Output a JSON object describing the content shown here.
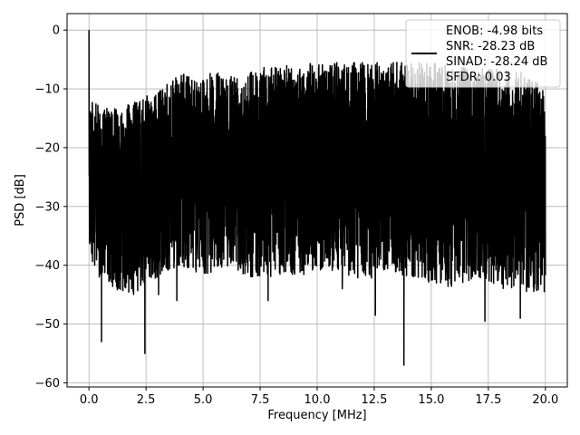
{
  "chart_data": {
    "type": "line",
    "title": "",
    "xlabel": "Frequency [MHz]",
    "ylabel": "PSD [dB]",
    "xlim": [
      -0.96,
      20.96
    ],
    "ylim": [
      -60.7,
      2.8
    ],
    "xticks": [
      0.0,
      2.5,
      5.0,
      7.5,
      10.0,
      12.5,
      15.0,
      17.5,
      20.0
    ],
    "xtick_labels": [
      "0.0",
      "2.5",
      "5.0",
      "7.5",
      "10.0",
      "12.5",
      "15.0",
      "17.5",
      "20.0"
    ],
    "yticks": [
      0,
      -10,
      -20,
      -30,
      -40,
      -50,
      -60
    ],
    "ytick_labels": [
      "0",
      "−10",
      "−20",
      "−30",
      "−40",
      "−50",
      "−60"
    ],
    "grid": true,
    "legend_position": "top-right",
    "legend_lines": [
      "ENOB: -4.98 bits",
      "SNR: -28.23 dB",
      "SINAD: -28.24 dB",
      "SFDR: 0.03"
    ],
    "series": [
      {
        "color": "#000000",
        "description_points": {
          "x": [
            0.0,
            0.02,
            0.05,
            0.1,
            0.5,
            1.0,
            2.0,
            3.0,
            4.0,
            5.0,
            6.0,
            7.0,
            8.0,
            9.0,
            10.0,
            11.0,
            12.0,
            13.0,
            14.0,
            15.0,
            16.0,
            17.0,
            18.0,
            19.0,
            20.0
          ],
          "y_upper": [
            0.0,
            -7.0,
            -10.0,
            -12.0,
            -13.0,
            -13.5,
            -12.0,
            -10.5,
            -7.5,
            -7.5,
            -7.0,
            -6.5,
            -6.0,
            -6.0,
            -5.5,
            -5.5,
            -5.5,
            -5.5,
            -5.5,
            -5.5,
            -6.0,
            -6.0,
            -6.5,
            -7.0,
            -10.0
          ],
          "y_lower": [
            -28.0,
            -40.0,
            -37.0,
            -39.0,
            -42.0,
            -44.0,
            -45.0,
            -42.0,
            -40.0,
            -42.0,
            -40.0,
            -42.0,
            -42.0,
            -42.0,
            -41.0,
            -41.0,
            -43.0,
            -41.0,
            -43.0,
            -43.0,
            -44.0,
            -42.0,
            -44.0,
            -45.0,
            -44.0
          ]
        },
        "deep_dips": [
          {
            "x": 0.25,
            "y": -40.0
          },
          {
            "x": 0.45,
            "y": -42.0
          },
          {
            "x": 0.55,
            "y": -53.0
          },
          {
            "x": 2.45,
            "y": -55.0
          },
          {
            "x": 3.05,
            "y": -45.0
          },
          {
            "x": 3.85,
            "y": -46.0
          },
          {
            "x": 7.85,
            "y": -46.0
          },
          {
            "x": 11.1,
            "y": -44.0
          },
          {
            "x": 12.55,
            "y": -48.5
          },
          {
            "x": 13.8,
            "y": -57.0
          },
          {
            "x": 14.6,
            "y": -42.0
          },
          {
            "x": 17.35,
            "y": -49.5
          },
          {
            "x": 18.9,
            "y": -49.0
          },
          {
            "x": 19.95,
            "y": -44.5
          }
        ]
      }
    ]
  }
}
